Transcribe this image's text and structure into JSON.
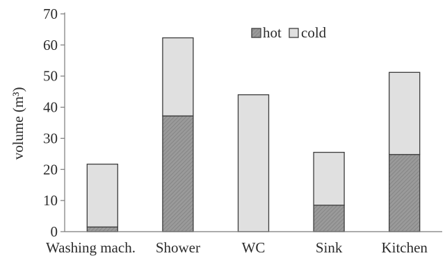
{
  "chart_data": {
    "type": "bar",
    "stacked": true,
    "categories": [
      "Washing mach.",
      "Shower",
      "WC",
      "Sink",
      "Kitchen"
    ],
    "series": [
      {
        "name": "hot",
        "values": [
          1.5,
          37.2,
          0,
          8.5,
          24.8
        ],
        "color": "#9a9a9a",
        "pattern": "hatched"
      },
      {
        "name": "cold",
        "values": [
          20.2,
          25.1,
          44.0,
          17.0,
          26.4
        ],
        "color": "#e0e0e0",
        "pattern": "solid"
      }
    ],
    "xlabel": "",
    "ylabel": "volume (m³)",
    "ylim": [
      0,
      70
    ],
    "yticks": [
      0,
      10,
      20,
      30,
      40,
      50,
      60,
      70
    ],
    "grid": false,
    "legend_position": "top-right"
  }
}
